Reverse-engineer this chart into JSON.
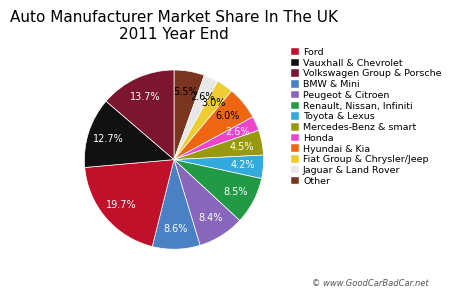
{
  "title": "Auto Manufacturer Market Share In The UK\n2011 Year End",
  "labels": [
    "Ford",
    "Vauxhall & Chevrolet",
    "Volkswagen Group & Porsche",
    "BMW & Mini",
    "Peugeot & Citroen",
    "Renault, Nissan, Infiniti",
    "Toyota & Lexus",
    "Mercedes-Benz & smart",
    "Honda",
    "Hyundai & Kia",
    "Fiat Group & Chrysler/Jeep",
    "Jaguar & Land Rover",
    "Other"
  ],
  "values": [
    19.7,
    12.7,
    13.7,
    8.6,
    8.4,
    8.5,
    4.2,
    4.5,
    2.6,
    6.0,
    3.0,
    2.6,
    5.5
  ],
  "colors": [
    "#c0102a",
    "#111111",
    "#7b1530",
    "#4a80c4",
    "#8866bb",
    "#229944",
    "#33aadd",
    "#999911",
    "#ee44cc",
    "#ee6611",
    "#eecc33",
    "#e8e8e8",
    "#7a3520"
  ],
  "legend_labels": [
    "Ford",
    "Vauxhall & Chevrolet",
    "Volkswagen Group & Porsche",
    "BMW & Mini",
    "Peugeot & Citroen",
    "Renault, Nissan, Infiniti",
    "Toyota & Lexus",
    "Mercedes-Benz & smart",
    "Honda",
    "Hyundai & Kia",
    "Fiat Group & Chrysler/Jeep",
    "Jaguar & Land Rover",
    "Other"
  ],
  "watermark": "© www.GoodCarBadCar.net",
  "startangle": 90,
  "counterclock": false,
  "title_fontsize": 11,
  "legend_fontsize": 6.8,
  "autopct_fontsize": 7
}
